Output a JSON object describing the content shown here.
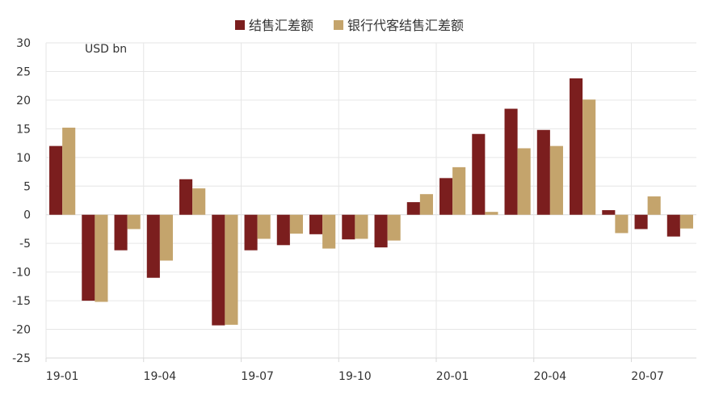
{
  "chart_data": {
    "type": "bar",
    "unit_label": "USD bn",
    "ylim": [
      -25,
      30
    ],
    "yticks": [
      30,
      25,
      20,
      15,
      10,
      5,
      0,
      -5,
      -10,
      -15,
      -20,
      -25
    ],
    "grid": true,
    "legend_position": "top-center",
    "categories": [
      "19-01",
      "19-02",
      "19-03",
      "19-04",
      "19-05",
      "19-06",
      "19-07",
      "19-08",
      "19-09",
      "19-10",
      "19-11",
      "19-12",
      "20-01",
      "20-02",
      "20-03",
      "20-04",
      "20-05",
      "20-06",
      "20-07",
      "20-08"
    ],
    "xtick_labels": [
      "19-01",
      "19-04",
      "19-07",
      "19-10",
      "20-01",
      "20-04",
      "20-07"
    ],
    "series": [
      {
        "name": "结售汇差额",
        "color": "#7b1e1e",
        "values": [
          12.0,
          -15.0,
          -6.2,
          -11.0,
          6.2,
          -19.3,
          -6.2,
          -5.3,
          -3.4,
          -4.3,
          -5.7,
          2.2,
          6.4,
          14.1,
          18.5,
          14.8,
          23.8,
          0.8,
          -2.5,
          -3.8
        ]
      },
      {
        "name": "银行代客结售汇差额",
        "color": "#c4a46c",
        "values": [
          15.2,
          -15.2,
          -2.5,
          -8.0,
          4.6,
          -19.2,
          -4.2,
          -3.3,
          -5.9,
          -4.2,
          -4.5,
          3.6,
          8.3,
          0.5,
          11.6,
          12.0,
          20.1,
          -3.2,
          3.2,
          -2.4
        ]
      }
    ]
  }
}
